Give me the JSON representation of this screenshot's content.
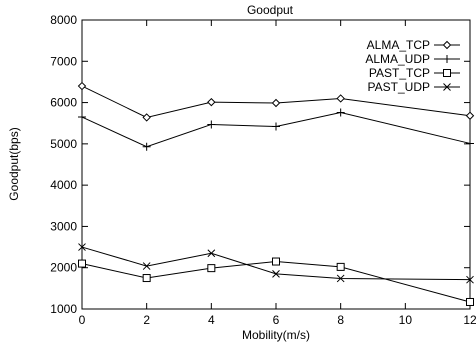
{
  "chart_data": {
    "type": "line",
    "title": "Goodput",
    "xlabel": "Mobility(m/s)",
    "ylabel": "Goodput(bps)",
    "xlim": [
      0,
      12
    ],
    "ylim": [
      1000,
      8000
    ],
    "x_ticks": [
      "0",
      "2",
      "4",
      "6",
      "8",
      "10",
      "12"
    ],
    "y_ticks": [
      "1000",
      "2000",
      "3000",
      "4000",
      "5000",
      "6000",
      "7000",
      "8000"
    ],
    "grid": false,
    "legend_position": "top-right",
    "x": [
      0,
      2,
      4,
      6,
      8,
      12
    ],
    "series": [
      {
        "name": "ALMA_TCP",
        "marker": "diamond",
        "values": [
          6400,
          5640,
          6010,
          5990,
          6100,
          5680
        ]
      },
      {
        "name": "ALMA_UDP",
        "marker": "plus",
        "values": [
          5650,
          4930,
          5470,
          5420,
          5760,
          5010
        ]
      },
      {
        "name": "PAST_TCP",
        "marker": "square",
        "values": [
          2100,
          1750,
          1990,
          2150,
          2020,
          1170
        ]
      },
      {
        "name": "PAST_UDP",
        "marker": "cross",
        "values": [
          2500,
          2040,
          2350,
          1850,
          1740,
          1710
        ]
      }
    ]
  }
}
